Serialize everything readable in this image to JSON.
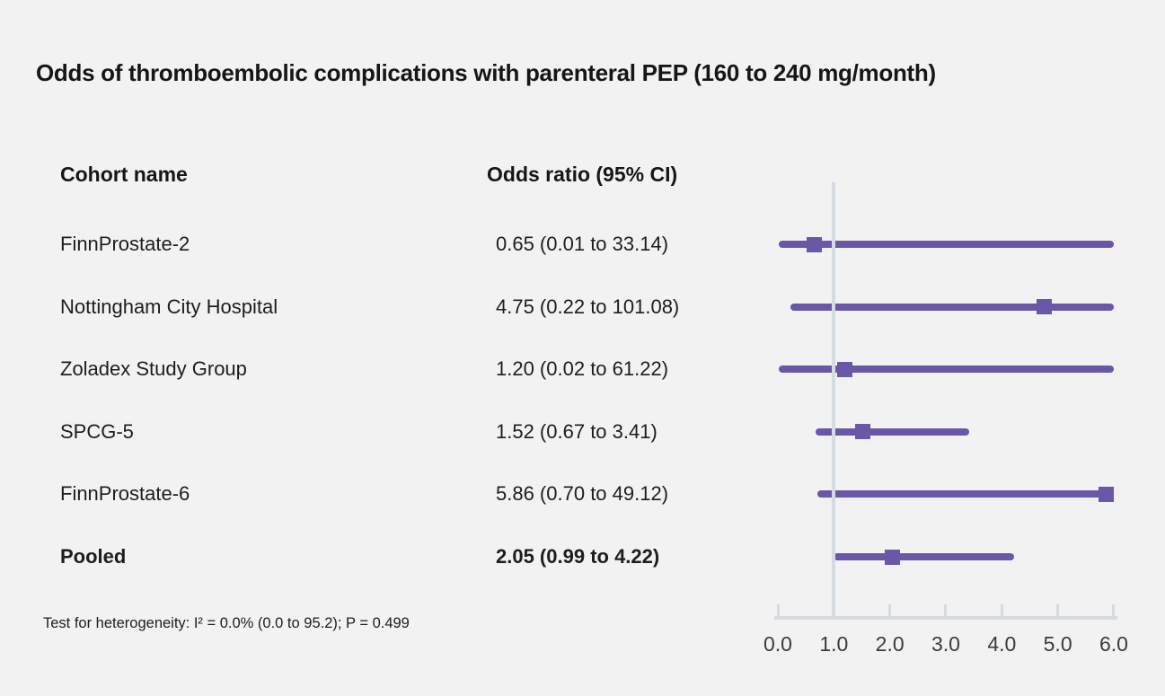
{
  "title": "Odds of thromboembolic complications with parenteral PEP (160 to 240 mg/month)",
  "columns": {
    "cohort": "Cohort name",
    "odds_ratio": "Odds ratio (95% CI)"
  },
  "footnote": "Test for heterogeneity: I² = 0.0% (0.0 to 95.2); P = 0.499",
  "colors": {
    "background": "#f2f2f2",
    "marker": "#6a57a7",
    "ci_line": "#6a57a7",
    "reference_line": "#d6dae1",
    "axis": "#d6dae1",
    "text": "#1d1d1d",
    "tick_text": "#3a3a3a"
  },
  "chart_data": {
    "type": "forest",
    "title": "Odds of thromboembolic complications with parenteral PEP (160 to 240 mg/month)",
    "rows": [
      {
        "label": "FinnProstate-2",
        "display": "0.65 (0.01 to 33.14)",
        "estimate": 0.65,
        "ci_low": 0.01,
        "ci_high": 33.14,
        "bold": false
      },
      {
        "label": "Nottingham City Hospital",
        "display": "4.75 (0.22 to 101.08)",
        "estimate": 4.75,
        "ci_low": 0.22,
        "ci_high": 101.08,
        "bold": false
      },
      {
        "label": "Zoladex Study Group",
        "display": "1.20 (0.02 to 61.22)",
        "estimate": 1.2,
        "ci_low": 0.02,
        "ci_high": 61.22,
        "bold": false
      },
      {
        "label": "SPCG-5",
        "display": "1.52 (0.67 to 3.41)",
        "estimate": 1.52,
        "ci_low": 0.67,
        "ci_high": 3.41,
        "bold": false
      },
      {
        "label": "FinnProstate-6",
        "display": "5.86 (0.70 to 49.12)",
        "estimate": 5.86,
        "ci_low": 0.7,
        "ci_high": 49.12,
        "bold": false
      },
      {
        "label": "Pooled",
        "display": "2.05 (0.99 to 4.22)",
        "estimate": 2.05,
        "ci_low": 0.99,
        "ci_high": 4.22,
        "bold": true
      }
    ],
    "x_axis": {
      "min": 0,
      "max": 6,
      "tick_values": [
        0,
        1,
        2,
        3,
        4,
        5,
        6
      ],
      "tick_labels": [
        "0.0",
        "1.0",
        "2.0",
        "3.0",
        "4.0",
        "5.0",
        "6.0"
      ],
      "reference_value": 1.0,
      "grid": false,
      "scale": "linear"
    }
  }
}
